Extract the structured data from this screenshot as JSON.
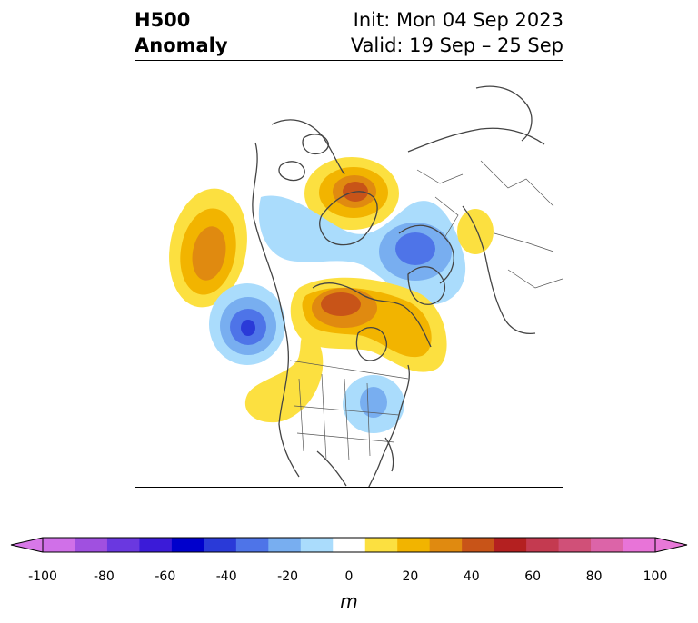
{
  "title": {
    "left_line1": "H500",
    "left_line2": "Anomaly",
    "right_line1": "Init: Mon 04 Sep 2023",
    "right_line2": "Valid: 19 Sep – 25 Sep"
  },
  "colorbar": {
    "units": "m",
    "ticks": [
      "-100",
      "-80",
      "-60",
      "-40",
      "-20",
      "0",
      "20",
      "40",
      "60",
      "80",
      "100"
    ],
    "colors": [
      "#d070e8",
      "#a050e0",
      "#6a38e0",
      "#3b1bd8",
      "#0000cc",
      "#2a3ad8",
      "#4e74e8",
      "#78aef0",
      "#aadcfc",
      "#ffffff",
      "#fce040",
      "#f2b400",
      "#e08a10",
      "#c85418",
      "#b42020",
      "#c43a50",
      "#d05078",
      "#dc64a8",
      "#e874d8"
    ],
    "min_color": "#d878e8",
    "max_color": "#e878d8"
  },
  "colors": {
    "coast": "#444444",
    "frame": "#000000"
  }
}
